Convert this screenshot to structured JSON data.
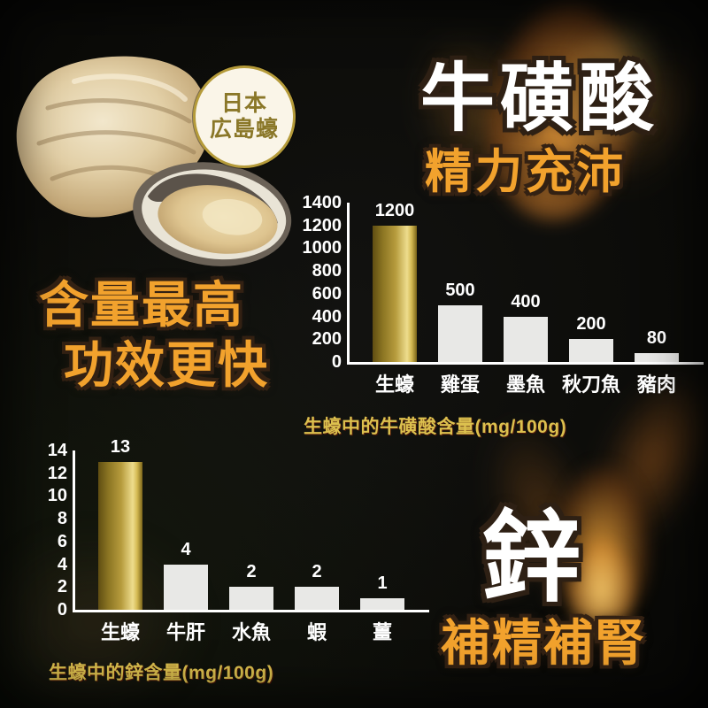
{
  "poster": {
    "badge": {
      "line1": "日本",
      "line2": "広島蠔"
    },
    "taurine": {
      "title": "牛磺酸",
      "subtitle": "精力充沛"
    },
    "slogan": {
      "line1": "含量最高",
      "line2": "功效更快"
    },
    "zinc": {
      "title": "鋅",
      "subtitle": "補精補腎"
    }
  },
  "colors": {
    "background": "#0B0B08",
    "accent_orange": "#F2A22D",
    "caption_gold": "#DCC04E",
    "text_white": "#FFFFFF",
    "outline_dark": "#2E2014",
    "axis_white": "#FFFFFF",
    "bar_default": "#E8E8E6",
    "bar_highlight_gold": [
      "#5F4D12",
      "#8A7422",
      "#B69B3D",
      "#EEDD8D",
      "#D4B952",
      "#7A6419"
    ],
    "badge_ring": "#B59B3A",
    "badge_bg": "#FAF5E8",
    "badge_text": "#8A7728"
  },
  "chart_data": [
    {
      "type": "bar",
      "title": "生蠔中的牛磺酸含量(mg/100g)",
      "categories": [
        "生蠔",
        "雞蛋",
        "墨魚",
        "秋刀魚",
        "豬肉"
      ],
      "values": [
        1200,
        500,
        400,
        200,
        80
      ],
      "xlabel": "",
      "ylabel": "",
      "ylim": [
        0,
        1400
      ],
      "yticks": [
        0,
        200,
        400,
        600,
        800,
        1000,
        1200,
        1400
      ],
      "grid": false,
      "legend": "none",
      "highlight_index": 0,
      "highlight_style": "gold-gradient",
      "value_labels": "above-bars"
    },
    {
      "type": "bar",
      "title": "生蠔中的鋅含量(mg/100g)",
      "categories": [
        "生蠔",
        "牛肝",
        "水魚",
        "蝦",
        "薑"
      ],
      "values": [
        13,
        4,
        2,
        2,
        1
      ],
      "xlabel": "",
      "ylabel": "",
      "ylim": [
        0,
        14
      ],
      "yticks": [
        0,
        2,
        4,
        6,
        8,
        10,
        12,
        14
      ],
      "grid": false,
      "legend": "none",
      "highlight_index": 0,
      "highlight_style": "gold-gradient",
      "value_labels": "above-bars"
    }
  ]
}
